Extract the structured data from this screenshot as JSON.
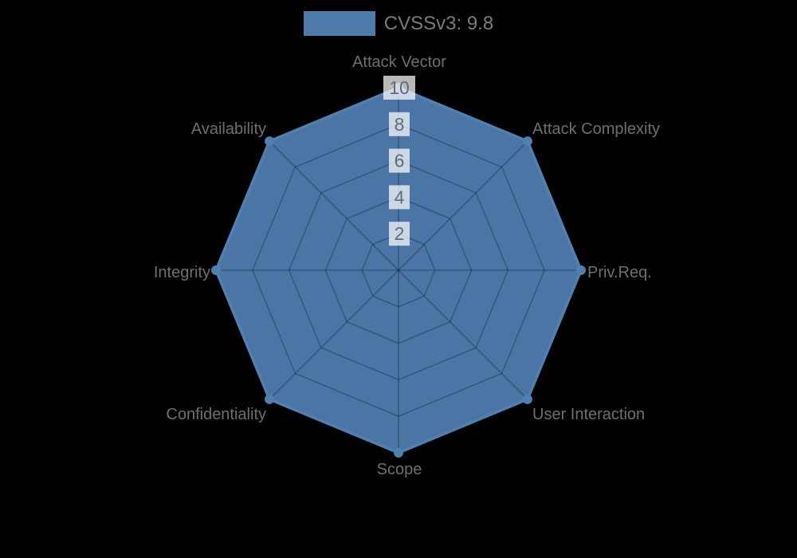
{
  "legend": {
    "label": "CVSSv3: 9.8",
    "swatch_color": "#4d7cab"
  },
  "chart_data": {
    "type": "radar",
    "title": "",
    "categories": [
      "Attack Vector",
      "Attack Complexity",
      "Priv.Req.",
      "User Interaction",
      "Scope",
      "Confidentiality",
      "Integrity",
      "Availability"
    ],
    "series": [
      {
        "name": "CVSSv3: 9.8",
        "values": [
          10,
          10,
          10,
          10,
          10,
          10,
          10,
          10
        ]
      }
    ],
    "ticks": [
      2,
      4,
      6,
      8,
      10
    ],
    "rmin": 0,
    "rmax": 10,
    "grid": true,
    "legend_position": "top",
    "colors": {
      "background": "#000000",
      "fill": "#4a75a5",
      "border": "#5080af",
      "point": "#5080af",
      "grid_line": "rgba(0,0,0,0.25)",
      "tick_text": "#646b74",
      "tick_backdrop": "rgba(255,255,255,0.72)",
      "axis_label": "#6f6f6f",
      "legend_text": "#7b7b7b"
    }
  }
}
